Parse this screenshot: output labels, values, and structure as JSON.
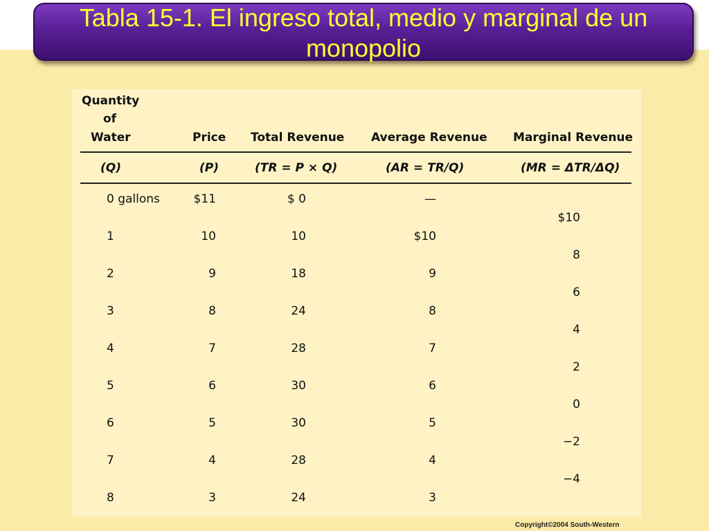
{
  "slide": {
    "title": "Tabla 15-1. El ingreso total, medio y marginal de un monopolio",
    "copyright": "Copyright©2004  South-Western"
  },
  "table": {
    "headers": {
      "quantity_line1": "Quantity",
      "quantity_line2": "of",
      "quantity_line3": "Water",
      "price": "Price",
      "total_revenue": "Total Revenue",
      "average_revenue": "Average Revenue",
      "marginal_revenue": "Marginal Revenue"
    },
    "symbols": {
      "quantity": "(Q)",
      "price": "(P)",
      "total_revenue": "(TR = P × Q)",
      "average_revenue": "(AR = TR/Q)",
      "marginal_revenue": "(MR = ΔTR/ΔQ)"
    },
    "rows": [
      {
        "q": "0 gallons",
        "p": "$11",
        "tr": "$  0",
        "ar": "—"
      },
      {
        "q": "1",
        "p": "10",
        "tr": "10",
        "ar": "$10"
      },
      {
        "q": "2",
        "p": "9",
        "tr": "18",
        "ar": "9"
      },
      {
        "q": "3",
        "p": "8",
        "tr": "24",
        "ar": "8"
      },
      {
        "q": "4",
        "p": "7",
        "tr": "28",
        "ar": "7"
      },
      {
        "q": "5",
        "p": "6",
        "tr": "30",
        "ar": "6"
      },
      {
        "q": "6",
        "p": "5",
        "tr": "30",
        "ar": "5"
      },
      {
        "q": "7",
        "p": "4",
        "tr": "28",
        "ar": "4"
      },
      {
        "q": "8",
        "p": "3",
        "tr": "24",
        "ar": "3"
      }
    ],
    "marginal": [
      "$10",
      "8",
      "6",
      "4",
      "2",
      "0",
      "−2",
      "−4"
    ]
  }
}
